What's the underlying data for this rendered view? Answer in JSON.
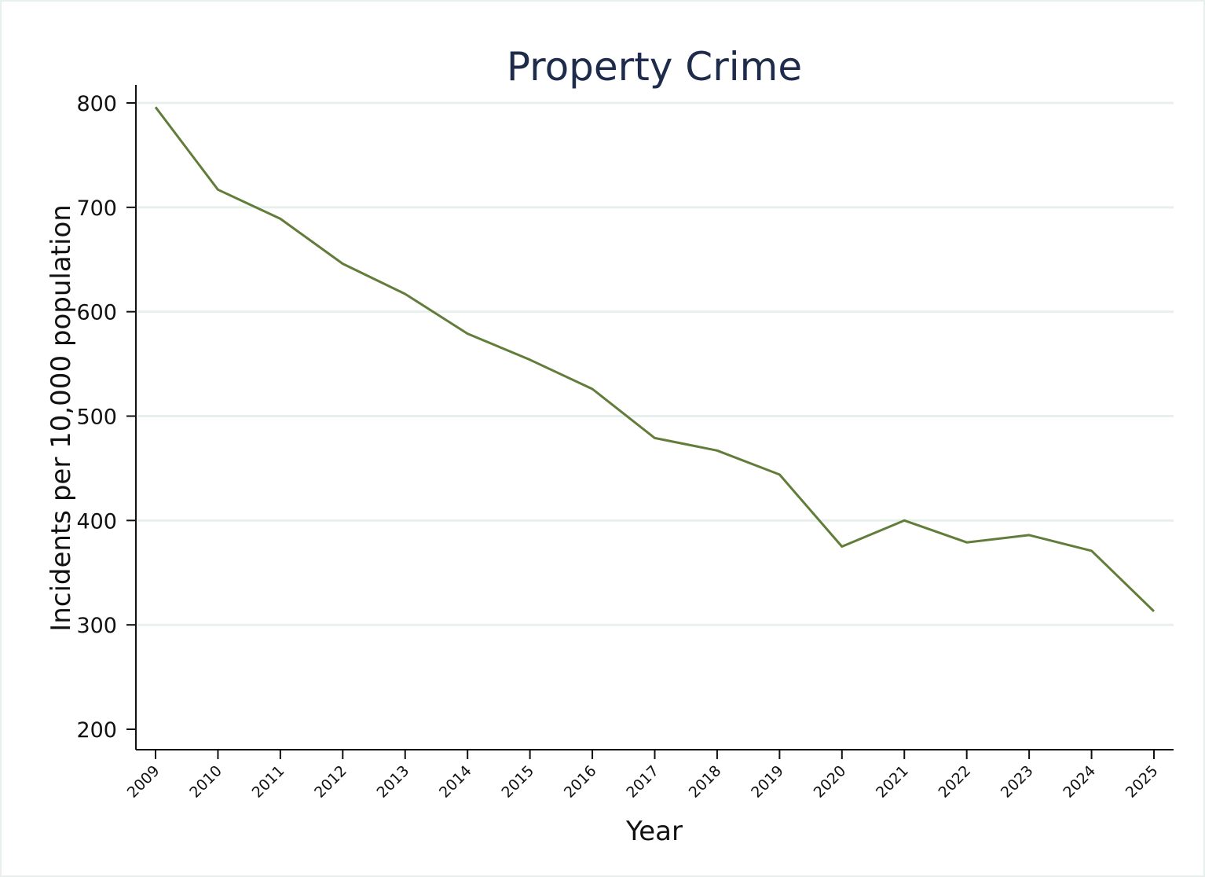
{
  "chart_data": {
    "type": "line",
    "title": "Property Crime",
    "xlabel": "Year",
    "ylabel": "Incidents per 10,000 population",
    "x": [
      "2009",
      "2010",
      "2011",
      "2012",
      "2013",
      "2014",
      "2015",
      "2016",
      "2017",
      "2018",
      "2019",
      "2020",
      "2021",
      "2022",
      "2023",
      "2024",
      "2025"
    ],
    "series": [
      {
        "values": [
          796,
          717,
          689,
          646,
          617,
          579,
          554,
          526,
          479,
          467,
          444,
          375,
          400,
          379,
          386,
          371,
          313
        ]
      }
    ],
    "ylim": [
      200,
      800
    ],
    "yticks": [
      "200",
      "300",
      "400",
      "500",
      "600",
      "700",
      "800"
    ],
    "grid": true,
    "colors": {
      "series": "#627d3a",
      "grid": "#e8f0ee",
      "title": "#1e2b4a"
    }
  }
}
